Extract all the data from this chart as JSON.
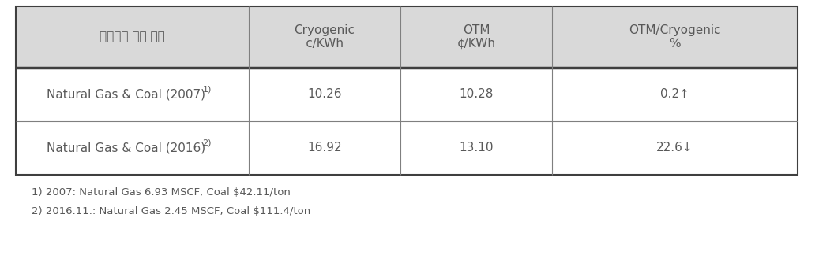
{
  "header_col0": "연료단가 기준 연도",
  "header_col1": "Cryogenic\n¢/KWh",
  "header_col2": "OTM\n¢/KWh",
  "header_col3": "OTM/Cryogenic\n%",
  "row1_col0_main": "Natural Gas & Coal (2007)",
  "row1_col0_sup": "1)",
  "row1_col1": "10.26",
  "row1_col2": "10.28",
  "row1_col3": "0.2↑",
  "row2_col0_main": "Natural Gas & Coal (2016)",
  "row2_col0_sup": "2)",
  "row2_col1": "16.92",
  "row2_col2": "13.10",
  "row2_col3": "22.6↓",
  "footnote1": "1) 2007: Natural Gas 6.93 MSCF, Coal $42.11/ton",
  "footnote2": "2) 2016.11.: Natural Gas 2.45 MSCF, Coal $111.4/ton",
  "header_bg": "#d9d9d9",
  "text_color": "#595959",
  "border_dark": "#3f3f3f",
  "border_light": "#7f7f7f",
  "header_fontsize": 11,
  "cell_fontsize": 11,
  "footnote_fontsize": 9.5
}
